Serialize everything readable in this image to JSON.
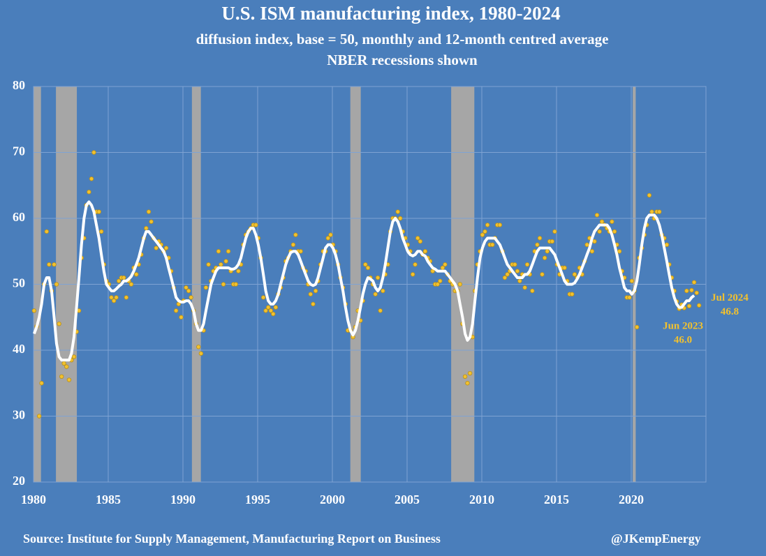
{
  "chart_data": {
    "type": "scatter-line",
    "title": "U.S. ISM manufacturing index, 1980-2024",
    "subtitle": "diffusion index, base = 50, monthly and 12-month centred average",
    "note": "NBER recessions shown",
    "source": "Source: Institute for Supply Management, Manufacturing Report on Business",
    "credit": "@JKempEnergy",
    "xlim": [
      1980,
      2025
    ],
    "ylim": [
      20,
      80
    ],
    "xticks": [
      1980,
      1985,
      1990,
      1995,
      2000,
      2005,
      2010,
      2015,
      2020
    ],
    "yticks": [
      20,
      30,
      40,
      50,
      60,
      70,
      80
    ],
    "grid": true,
    "recessions": [
      [
        1980.0,
        1980.5
      ],
      [
        1981.5,
        1982.9
      ],
      [
        1990.6,
        1991.2
      ],
      [
        2001.2,
        2001.9
      ],
      [
        2007.95,
        2009.5
      ],
      [
        2020.1,
        2020.3
      ]
    ],
    "recession_color": "#a6a6a6",
    "annotations": [
      {
        "label": "Jul 2024",
        "x": 2024.54,
        "value": 46.8
      },
      {
        "label": "Jun 2023",
        "x": 2023.46,
        "value": 46,
        "value_label": "46.0"
      }
    ],
    "x": [
      1980.04,
      1980.21,
      1980.38,
      1980.54,
      1980.71,
      1980.88,
      1981.04,
      1981.21,
      1981.38,
      1981.54,
      1981.71,
      1981.88,
      1982.04,
      1982.21,
      1982.38,
      1982.54,
      1982.71,
      1982.88,
      1983.04,
      1983.21,
      1983.38,
      1983.54,
      1983.71,
      1983.88,
      1984.04,
      1984.21,
      1984.38,
      1984.54,
      1984.71,
      1984.88,
      1985.04,
      1985.21,
      1985.38,
      1985.54,
      1985.71,
      1985.88,
      1986.04,
      1986.21,
      1986.38,
      1986.54,
      1986.71,
      1986.88,
      1987.04,
      1987.21,
      1987.38,
      1987.54,
      1987.71,
      1987.88,
      1988.04,
      1988.21,
      1988.38,
      1988.54,
      1988.71,
      1988.88,
      1989.04,
      1989.21,
      1989.38,
      1989.54,
      1989.71,
      1989.88,
      1990.04,
      1990.21,
      1990.38,
      1990.54,
      1990.71,
      1990.88,
      1991.04,
      1991.21,
      1991.38,
      1991.54,
      1991.71,
      1991.88,
      1992.04,
      1992.21,
      1992.38,
      1992.54,
      1992.71,
      1992.88,
      1993.04,
      1993.21,
      1993.38,
      1993.54,
      1993.71,
      1993.88,
      1994.04,
      1994.21,
      1994.38,
      1994.54,
      1994.71,
      1994.88,
      1995.04,
      1995.21,
      1995.38,
      1995.54,
      1995.71,
      1995.88,
      1996.04,
      1996.21,
      1996.38,
      1996.54,
      1996.71,
      1996.88,
      1997.04,
      1997.21,
      1997.38,
      1997.54,
      1997.71,
      1997.88,
      1998.04,
      1998.21,
      1998.38,
      1998.54,
      1998.71,
      1998.88,
      1999.04,
      1999.21,
      1999.38,
      1999.54,
      1999.71,
      1999.88,
      2000.04,
      2000.21,
      2000.38,
      2000.54,
      2000.71,
      2000.88,
      2001.04,
      2001.21,
      2001.38,
      2001.54,
      2001.71,
      2001.88,
      2002.04,
      2002.21,
      2002.38,
      2002.54,
      2002.71,
      2002.88,
      2003.04,
      2003.21,
      2003.38,
      2003.54,
      2003.71,
      2003.88,
      2004.04,
      2004.21,
      2004.38,
      2004.54,
      2004.71,
      2004.88,
      2005.04,
      2005.21,
      2005.38,
      2005.54,
      2005.71,
      2005.88,
      2006.04,
      2006.21,
      2006.38,
      2006.54,
      2006.71,
      2006.88,
      2007.04,
      2007.21,
      2007.38,
      2007.54,
      2007.71,
      2007.88,
      2008.04,
      2008.21,
      2008.38,
      2008.54,
      2008.71,
      2008.88,
      2009.04,
      2009.21,
      2009.38,
      2009.54,
      2009.71,
      2009.88,
      2010.04,
      2010.21,
      2010.38,
      2010.54,
      2010.71,
      2010.88,
      2011.04,
      2011.21,
      2011.38,
      2011.54,
      2011.71,
      2011.88,
      2012.04,
      2012.21,
      2012.38,
      2012.54,
      2012.71,
      2012.88,
      2013.04,
      2013.21,
      2013.38,
      2013.54,
      2013.71,
      2013.88,
      2014.04,
      2014.21,
      2014.38,
      2014.54,
      2014.71,
      2014.88,
      2015.04,
      2015.21,
      2015.38,
      2015.54,
      2015.71,
      2015.88,
      2016.04,
      2016.21,
      2016.38,
      2016.54,
      2016.71,
      2016.88,
      2017.04,
      2017.21,
      2017.38,
      2017.54,
      2017.71,
      2017.88,
      2018.04,
      2018.21,
      2018.38,
      2018.54,
      2018.71,
      2018.88,
      2019.04,
      2019.21,
      2019.38,
      2019.54,
      2019.71,
      2019.88,
      2020.04,
      2020.21,
      2020.38,
      2020.54,
      2020.71,
      2020.88,
      2021.04,
      2021.21,
      2021.38,
      2021.54,
      2021.71,
      2021.88,
      2022.04,
      2022.21,
      2022.38,
      2022.54,
      2022.71,
      2022.88,
      2023.04,
      2023.21,
      2023.38,
      2023.54,
      2023.71,
      2023.88,
      2024.04,
      2024.21,
      2024.38,
      2024.54
    ],
    "series": [
      {
        "style": "points",
        "color": "#f2c12e",
        "values": [
          46,
          43.6,
          30,
          35,
          50,
          58,
          53,
          49,
          53,
          50,
          44,
          36,
          38,
          37.5,
          35.5,
          38.5,
          39,
          42.8,
          46,
          54,
          57,
          62,
          64,
          66,
          70,
          61,
          61,
          58,
          53,
          50.5,
          50,
          48,
          47.5,
          48,
          50.5,
          51,
          51,
          48,
          50.5,
          50,
          52.5,
          51.5,
          53,
          54.5,
          57,
          58.5,
          61,
          59.5,
          57,
          55.5,
          56.5,
          56,
          55,
          55.5,
          54,
          52,
          49.5,
          46,
          47,
          45,
          47.5,
          49.5,
          49,
          48,
          46,
          44,
          40.5,
          39.5,
          43,
          49.5,
          53,
          50.5,
          52,
          52.5,
          55,
          53,
          50,
          53.5,
          55,
          52,
          50,
          50,
          52,
          53,
          56,
          57.5,
          58,
          58.5,
          59,
          59,
          57,
          54,
          48,
          46,
          46.5,
          46,
          45.5,
          46.5,
          48.5,
          49.5,
          51,
          53.5,
          54,
          55,
          56,
          57.5,
          55,
          55,
          52.5,
          52,
          50,
          48.5,
          47,
          49,
          50.5,
          53,
          55,
          55,
          57,
          57.5,
          56,
          55,
          53,
          51,
          49.5,
          47,
          43,
          43,
          42,
          43.5,
          46,
          44.5,
          47.5,
          53,
          52.5,
          51,
          50,
          48.5,
          51,
          46,
          49,
          51.5,
          53,
          58,
          60,
          60,
          61,
          60,
          58,
          57,
          56,
          55,
          51.5,
          53,
          57,
          56.5,
          54.5,
          55,
          54,
          53.5,
          52,
          50,
          50,
          50.5,
          52.5,
          53,
          51.5,
          50.5,
          50,
          49,
          49,
          50,
          44,
          36,
          35,
          36.5,
          42,
          49,
          53,
          55,
          57.5,
          58,
          59,
          56,
          56,
          57,
          59,
          59,
          55,
          51,
          51.5,
          52,
          53,
          53,
          52,
          50.5,
          51.5,
          49.5,
          53,
          51.5,
          49,
          55,
          56,
          57,
          51.5,
          54,
          55,
          56.5,
          56.5,
          58,
          53,
          51.5,
          52.5,
          52.5,
          50.5,
          48.5,
          48.5,
          51.5,
          51,
          52.5,
          51.5,
          53.5,
          56,
          57,
          55,
          56.5,
          60.5,
          58,
          59.5,
          59,
          58.5,
          58,
          59.5,
          58,
          56,
          55,
          52,
          51,
          48,
          48,
          50.5,
          49,
          43.5,
          54,
          55.5,
          57.5,
          59,
          63.5,
          61,
          60,
          61,
          61,
          57.5,
          57,
          56,
          53,
          51,
          49,
          47.4,
          46.3,
          46.9,
          46.4,
          49,
          46.7,
          49.1,
          50.3,
          48.7,
          46.8
        ]
      },
      {
        "style": "line",
        "color": "#ffffff",
        "values": [
          42.5,
          43.5,
          45,
          47,
          50,
          51,
          51,
          49,
          45,
          41,
          39,
          38.5,
          38.5,
          38.5,
          38.5,
          39.5,
          42,
          46.5,
          51,
          56,
          60,
          62,
          62.5,
          62,
          61,
          59,
          57,
          54.5,
          52,
          50,
          49.5,
          49,
          49,
          49.3,
          49.7,
          50,
          50.5,
          50.5,
          50.8,
          51.2,
          52,
          53,
          54,
          55.5,
          57,
          58,
          58,
          57.5,
          57,
          56.5,
          56,
          55.5,
          55,
          54,
          52.5,
          51,
          49.5,
          48,
          47.5,
          47.3,
          47.3,
          47.5,
          47.5,
          47,
          46,
          44,
          43,
          43,
          44,
          46,
          48,
          50,
          51,
          52,
          52.5,
          52.5,
          52.5,
          52.5,
          52.5,
          52.3,
          52.3,
          52.5,
          53,
          54,
          55.5,
          57,
          58,
          58.5,
          58.5,
          57.5,
          56,
          54,
          51.5,
          49,
          47.5,
          47,
          47,
          47.5,
          48.5,
          50,
          51.5,
          53,
          54,
          54.8,
          55,
          55,
          54.5,
          53.5,
          52.5,
          51.5,
          50.5,
          50,
          49.8,
          50,
          51,
          52.5,
          54,
          55.5,
          56,
          56,
          55.5,
          54.5,
          53,
          51,
          49,
          46.5,
          44.5,
          43,
          42.3,
          43,
          44.5,
          46.5,
          48.5,
          50,
          51,
          50.8,
          50.5,
          49.5,
          49,
          49.5,
          51,
          53,
          55.5,
          58,
          59.5,
          60,
          59.5,
          58.5,
          57,
          56,
          55,
          54.5,
          54.3,
          54.5,
          55,
          55,
          54.5,
          54.3,
          53.5,
          53,
          52.5,
          52.3,
          52,
          52,
          52,
          52,
          51.5,
          51,
          50.5,
          50,
          49,
          47,
          45,
          42.5,
          41.5,
          42,
          44,
          47.5,
          51,
          54,
          55.5,
          56.5,
          57,
          57,
          57,
          57,
          56.5,
          56,
          55,
          54,
          53,
          52.5,
          52,
          51.5,
          51,
          51,
          51,
          51.5,
          51.5,
          52,
          53,
          54,
          55,
          55.5,
          55.5,
          55.5,
          55.5,
          55.5,
          55,
          54.5,
          53.5,
          52.5,
          51.5,
          50.5,
          50,
          50,
          50,
          50.2,
          50.8,
          51.5,
          52.5,
          53.5,
          54.5,
          55.5,
          57,
          58,
          58.5,
          59,
          59,
          59,
          59,
          58.5,
          57.5,
          56,
          54.5,
          52.5,
          51,
          49.5,
          49,
          49,
          48.5,
          49,
          50.5,
          53,
          56,
          58.5,
          60,
          60.5,
          60.5,
          60.5,
          60,
          59,
          57.5,
          55.5,
          53.5,
          51.5,
          49.5,
          48,
          47,
          46.5,
          46.5,
          47,
          47.5,
          47.5,
          48,
          48.3,
          null,
          null
        ]
      }
    ]
  }
}
